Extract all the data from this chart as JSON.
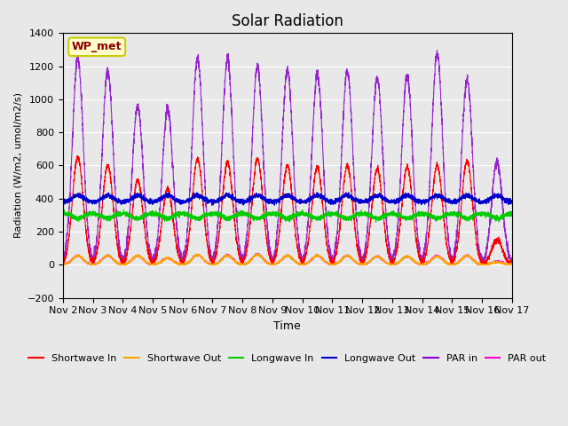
{
  "title": "Solar Radiation",
  "ylabel": "Radiation (W/m2, umol/m2/s)",
  "xlabel": "Time",
  "ylim": [
    -200,
    1400
  ],
  "yticks": [
    -200,
    0,
    200,
    400,
    600,
    800,
    1000,
    1200,
    1400
  ],
  "x_tick_labels": [
    "Nov 2",
    "Nov 3",
    "Nov 4",
    "Nov 5",
    "Nov 6",
    "Nov 7",
    "Nov 8",
    "Nov 9",
    "Nov 10",
    "Nov 11",
    "Nov 12",
    "Nov 13",
    "Nov 14",
    "Nov 15",
    "Nov 16",
    "Nov 17"
  ],
  "station_label": "WP_met",
  "background_color": "#e8e8e8",
  "series": {
    "shortwave_in": {
      "color": "#ff0000",
      "label": "Shortwave In"
    },
    "shortwave_out": {
      "color": "#ffa500",
      "label": "Shortwave Out"
    },
    "longwave_in": {
      "color": "#00cc00",
      "label": "Longwave In"
    },
    "longwave_out": {
      "color": "#0000cc",
      "label": "Longwave Out"
    },
    "par_in": {
      "color": "#8800cc",
      "label": "PAR in"
    },
    "par_out": {
      "color": "#ff00cc",
      "label": "PAR out"
    }
  },
  "n_days": 15,
  "points_per_day": 288,
  "sw_in_peaks": [
    650,
    600,
    510,
    460,
    640,
    620,
    640,
    600,
    590,
    600,
    580,
    590,
    600,
    630,
    150
  ],
  "sw_out_peaks": [
    55,
    55,
    55,
    40,
    60,
    55,
    60,
    55,
    55,
    55,
    50,
    50,
    50,
    55,
    15
  ],
  "par_in_peaks": [
    1250,
    1175,
    960,
    940,
    1250,
    1240,
    1200,
    1175,
    1150,
    1170,
    1130,
    1140,
    1280,
    1120,
    620
  ],
  "par_out_peaks": [
    55,
    55,
    55,
    40,
    60,
    60,
    65,
    55,
    55,
    55,
    50,
    50,
    55,
    55,
    20
  ],
  "lw_in_base": 310,
  "lw_out_base": 380
}
